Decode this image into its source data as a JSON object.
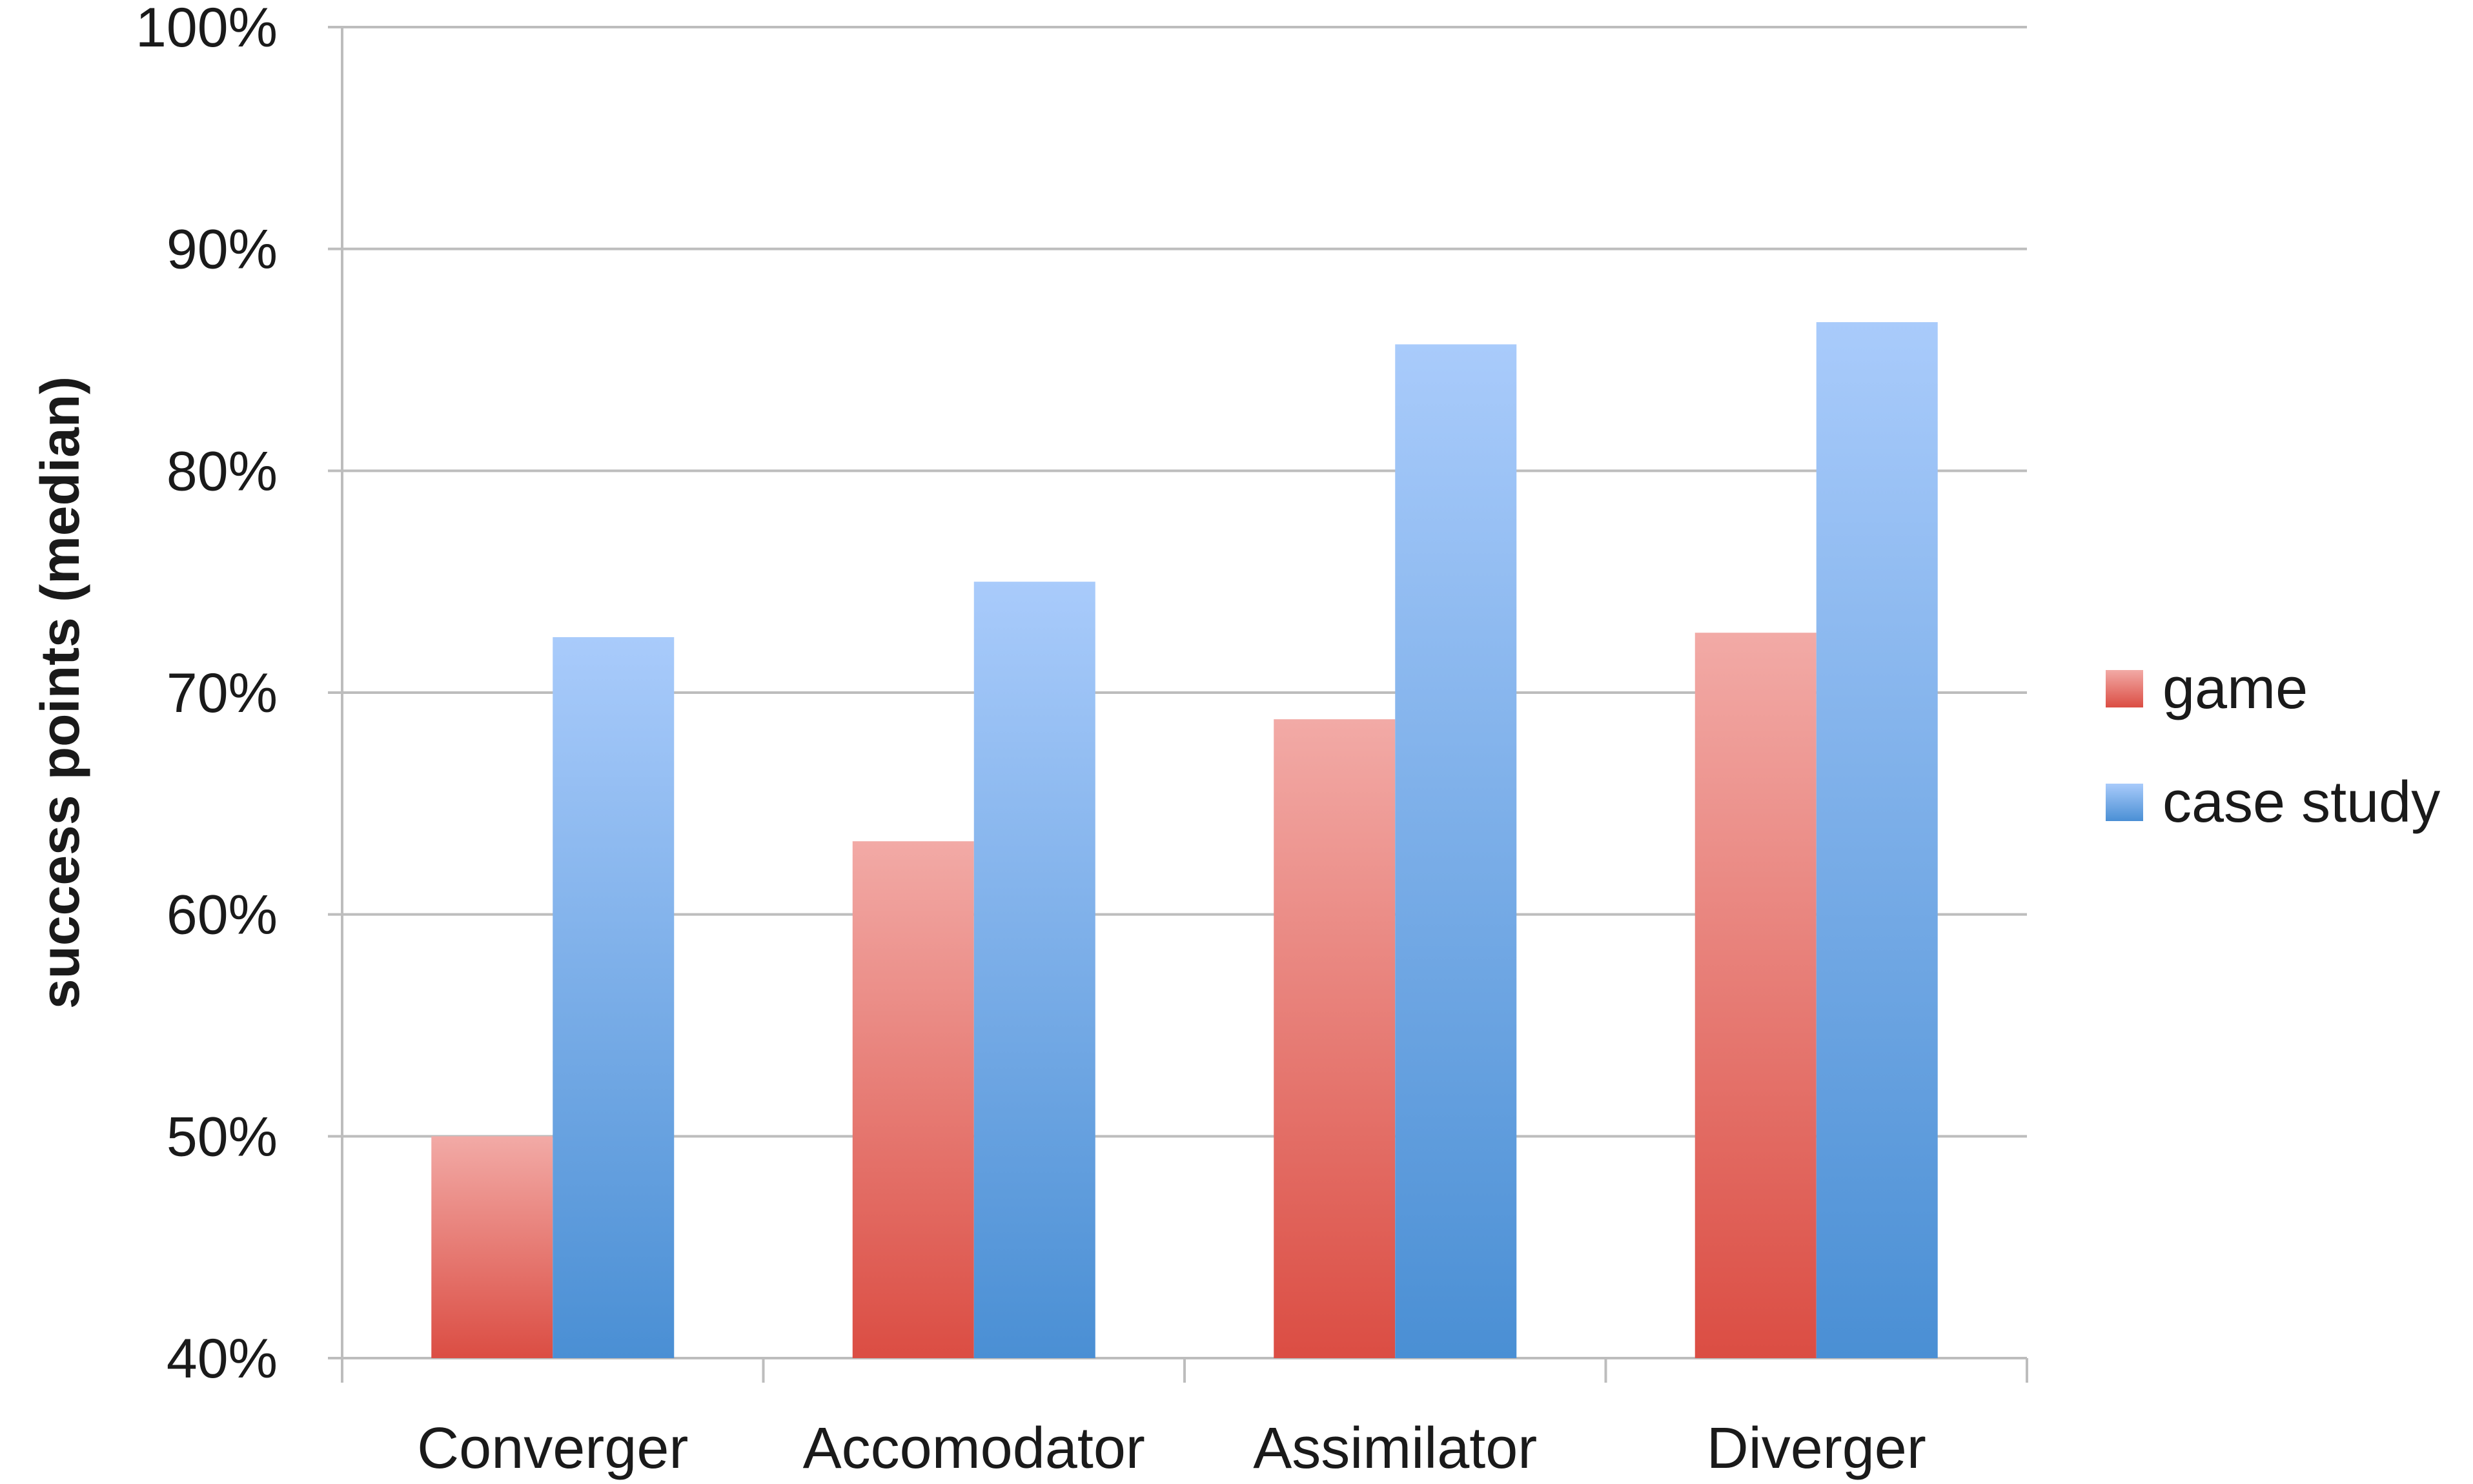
{
  "chart_data": {
    "type": "bar",
    "title": "",
    "xlabel": "",
    "ylabel": "success points (median)",
    "ylim": [
      40,
      100
    ],
    "yticks": [
      40,
      50,
      60,
      70,
      80,
      90,
      100
    ],
    "ytick_labels": [
      "40%",
      "50%",
      "60%",
      "70%",
      "80%",
      "90%",
      "100%"
    ],
    "categories": [
      "Converger",
      "Accomodator",
      "Assimilator",
      "Diverger"
    ],
    "series": [
      {
        "name": "game",
        "values": [
          50,
          63.3,
          68.8,
          72.7
        ],
        "color": "#e0534a"
      },
      {
        "name": "case study",
        "values": [
          72.5,
          75,
          85.7,
          86.7
        ],
        "color": "#4f93d8"
      }
    ],
    "grid": true,
    "legend": "right"
  }
}
